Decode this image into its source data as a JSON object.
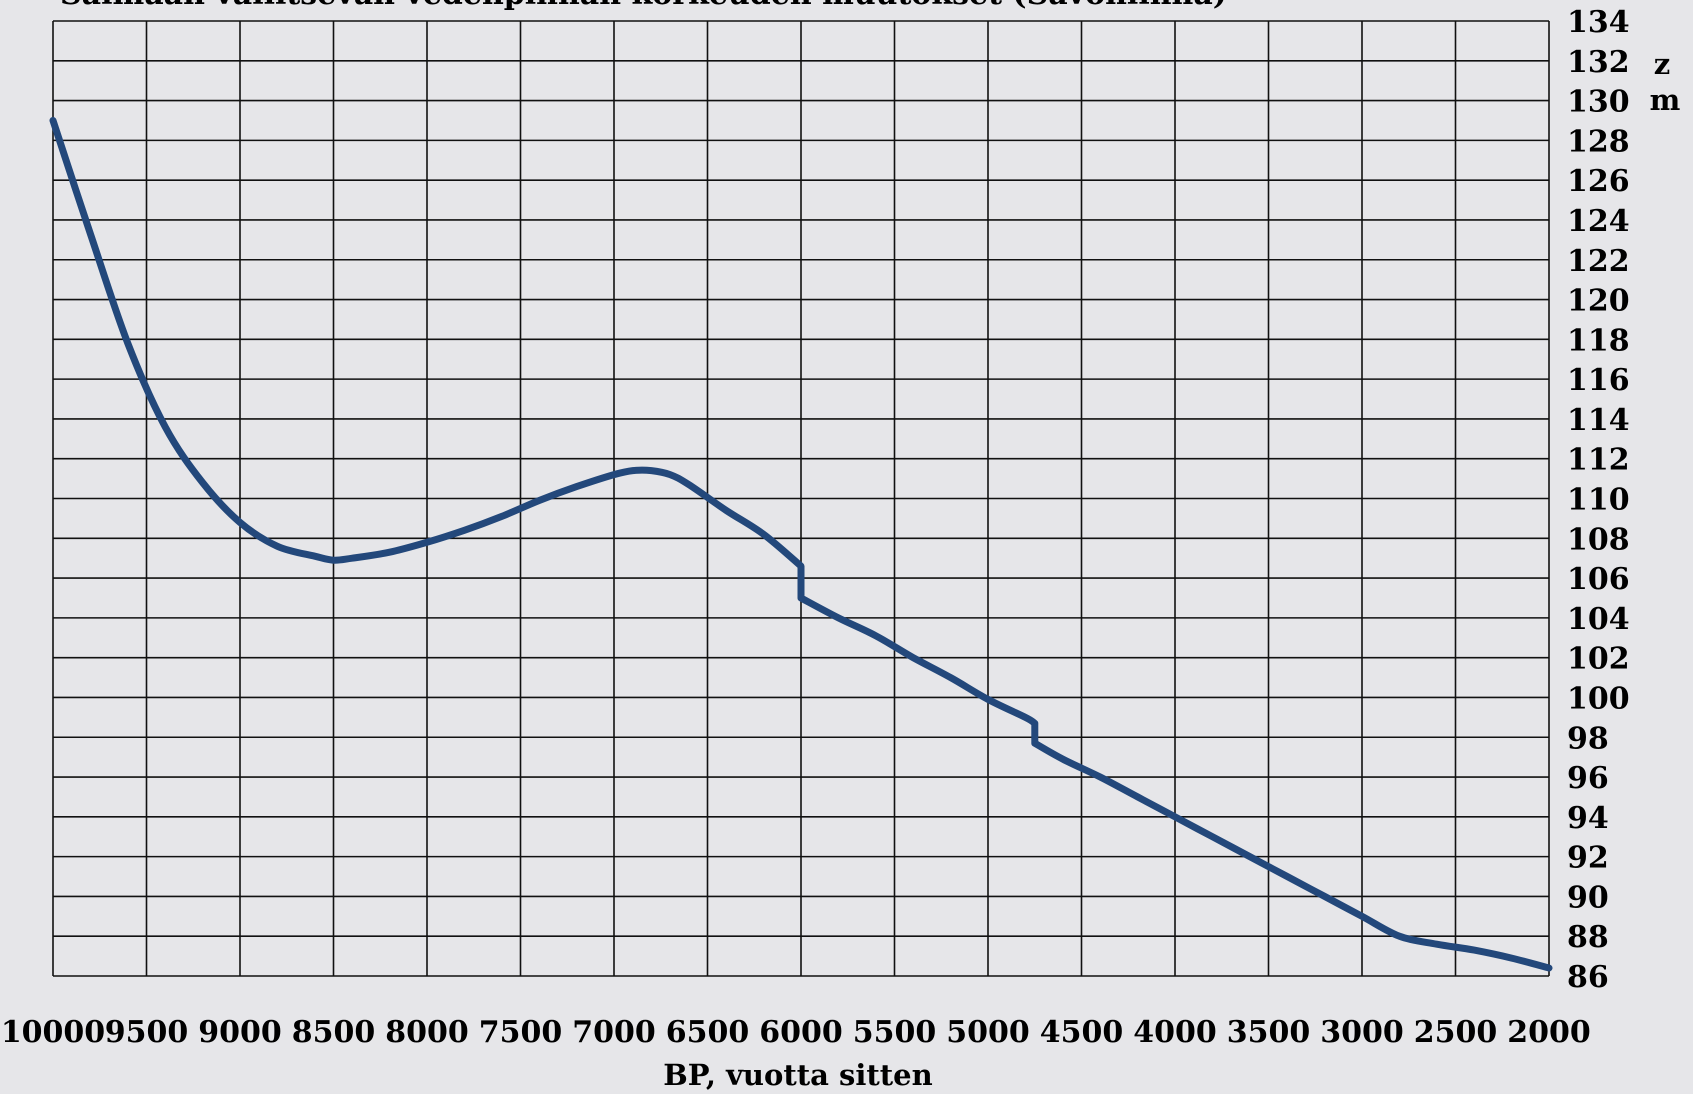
{
  "chart_data": {
    "type": "line",
    "title": "Saimaan vallitsevan vedenpinnan korkeuden muutokset (Savonlinna)",
    "xlabel": "BP, vuotta sitten",
    "ylabel_z": "z",
    "ylabel_unit": "m",
    "xlim": [
      10000,
      2000
    ],
    "ylim": [
      86,
      134
    ],
    "x_ticks": [
      10000,
      9500,
      9000,
      8500,
      8000,
      7500,
      7000,
      6500,
      6000,
      5500,
      5000,
      4500,
      4000,
      3500,
      3000,
      2500,
      2000
    ],
    "y_ticks": [
      86,
      88,
      90,
      92,
      94,
      96,
      98,
      100,
      102,
      104,
      106,
      108,
      110,
      112,
      114,
      116,
      118,
      120,
      122,
      124,
      126,
      128,
      130,
      132,
      134
    ],
    "grid": true,
    "y_axis_side": "right",
    "line_color": "#23487b",
    "series": [
      {
        "x": [
          10000,
          9800,
          9600,
          9400,
          9200,
          9000,
          8800,
          8600,
          8500,
          8400,
          8200,
          8000,
          7800,
          7600,
          7400,
          7200,
          7000,
          6900,
          6800,
          6700,
          6600,
          6400,
          6200,
          6000,
          6000,
          5800,
          5600,
          5400,
          5200,
          5000,
          4800,
          4750,
          4750,
          4600,
          4400,
          4200,
          4000,
          3800,
          3600,
          3400,
          3200,
          3000,
          2800,
          2600,
          2400,
          2200,
          2000
        ],
        "y": [
          129.0,
          123.3,
          117.8,
          113.6,
          110.8,
          108.8,
          107.6,
          107.1,
          106.9,
          107.0,
          107.3,
          107.8,
          108.4,
          109.1,
          109.9,
          110.6,
          111.2,
          111.4,
          111.4,
          111.2,
          110.7,
          109.4,
          108.2,
          106.6,
          105.0,
          104.0,
          103.1,
          102.0,
          101.0,
          99.9,
          99.0,
          98.7,
          97.7,
          96.9,
          96.0,
          95.0,
          94.0,
          93.0,
          92.0,
          91.0,
          90.0,
          89.0,
          88.0,
          87.6,
          87.3,
          86.9,
          86.4
        ]
      }
    ]
  }
}
